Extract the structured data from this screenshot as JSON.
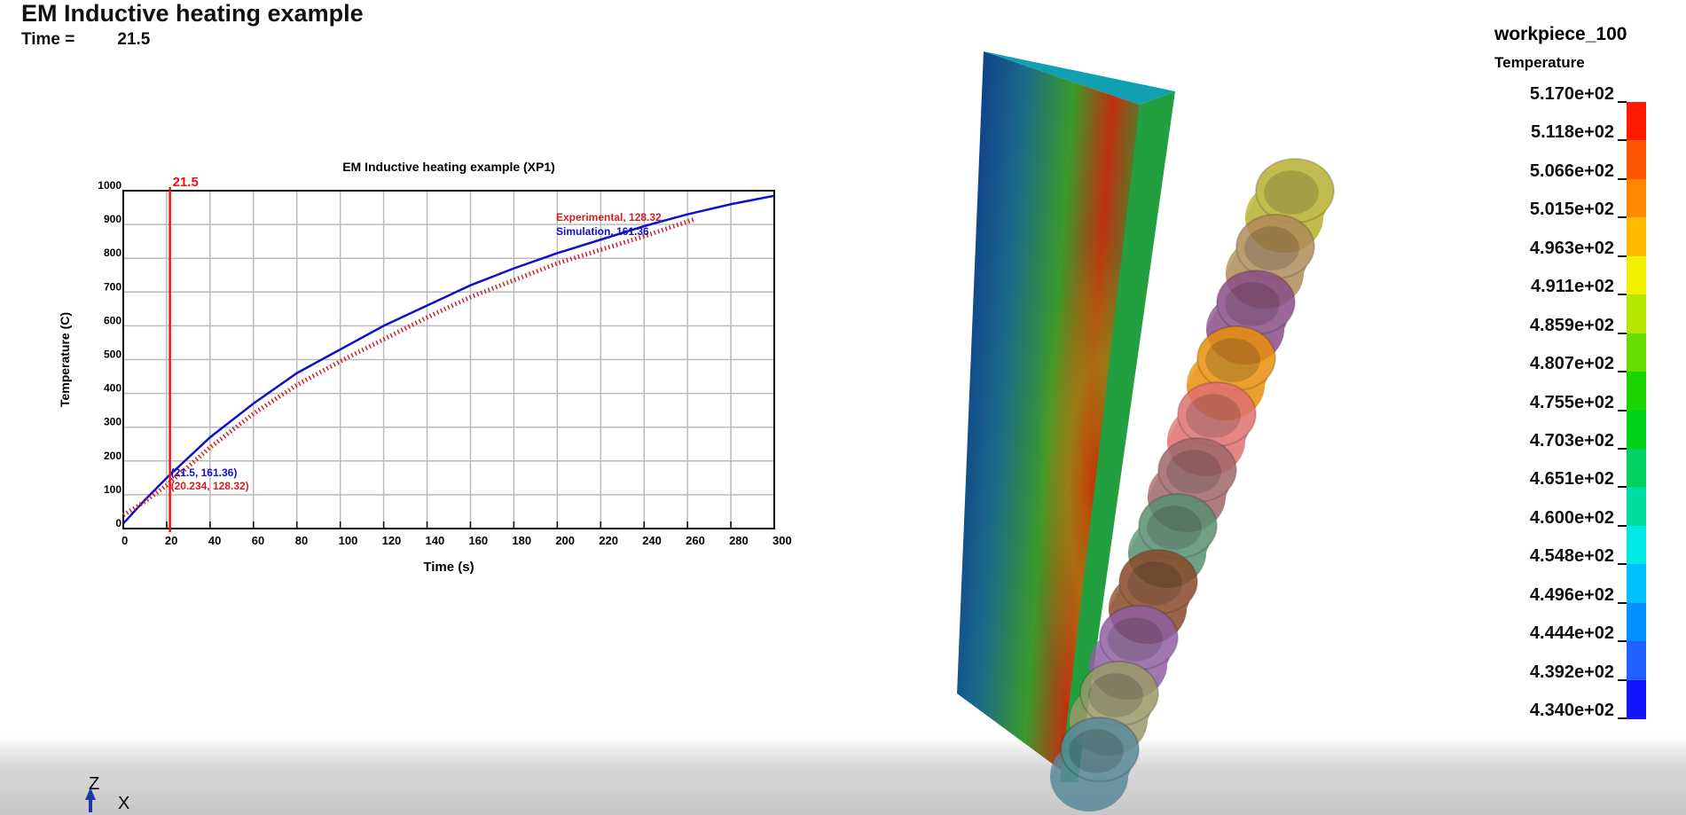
{
  "header": {
    "title": "EM Inductive heating example",
    "time_label": "Time =",
    "time_value": "21.5"
  },
  "legend": {
    "part": "workpiece_100",
    "quantity": "Temperature",
    "labels": [
      "5.170e+02",
      "5.118e+02",
      "5.066e+02",
      "5.015e+02",
      "4.963e+02",
      "4.911e+02",
      "4.859e+02",
      "4.807e+02",
      "4.755e+02",
      "4.703e+02",
      "4.651e+02",
      "4.600e+02",
      "4.548e+02",
      "4.496e+02",
      "4.444e+02",
      "4.392e+02",
      "4.340e+02"
    ],
    "colors": [
      "#ff1a00",
      "#ff5500",
      "#ff8800",
      "#ffbb00",
      "#f0f000",
      "#b4e600",
      "#66dd00",
      "#1ad400",
      "#00d21a",
      "#00d060",
      "#00dca0",
      "#00e8e8",
      "#00bfff",
      "#0090ff",
      "#2060ff",
      "#1414ff"
    ]
  },
  "triad": {
    "z": "Z",
    "x": "X"
  },
  "chart_data": {
    "type": "line",
    "title": "EM Inductive heating example (XP1)",
    "xlabel": "Time (s)",
    "ylabel": "Temperature (C)",
    "xlim": [
      0,
      300
    ],
    "ylim": [
      0,
      1000
    ],
    "grid": true,
    "xticks": [
      "0",
      "20",
      "40",
      "60",
      "80",
      "100",
      "120",
      "140",
      "160",
      "180",
      "200",
      "220",
      "240",
      "260",
      "280",
      "300"
    ],
    "yticks": [
      "0",
      "100",
      "200",
      "300",
      "400",
      "500",
      "600",
      "700",
      "800",
      "900",
      "1000"
    ],
    "cursor": {
      "x": 21.5,
      "label": "21.5",
      "color": "#ee1111"
    },
    "series": [
      {
        "name": "Simulation",
        "color": "#1010cc",
        "style": "solid",
        "legend_text": "Simulation, 161.36",
        "readout": "(21.5, 161.36)",
        "x": [
          0,
          10,
          20,
          40,
          60,
          80,
          100,
          120,
          140,
          160,
          180,
          200,
          220,
          240,
          260,
          280,
          300
        ],
        "y": [
          15,
          85,
          150,
          270,
          370,
          460,
          530,
          600,
          660,
          720,
          770,
          815,
          855,
          895,
          930,
          960,
          985
        ]
      },
      {
        "name": "Experimental",
        "color": "#cc2222",
        "style": "hatched",
        "legend_text": "Experimental, 128.32",
        "readout": "(20.234, 128.32)",
        "x": [
          0,
          10,
          20,
          40,
          60,
          80,
          100,
          120,
          140,
          160,
          180,
          200,
          220,
          240,
          263
        ],
        "y": [
          40,
          80,
          128,
          240,
          340,
          425,
          495,
          560,
          625,
          685,
          735,
          785,
          825,
          865,
          915
        ]
      }
    ]
  }
}
